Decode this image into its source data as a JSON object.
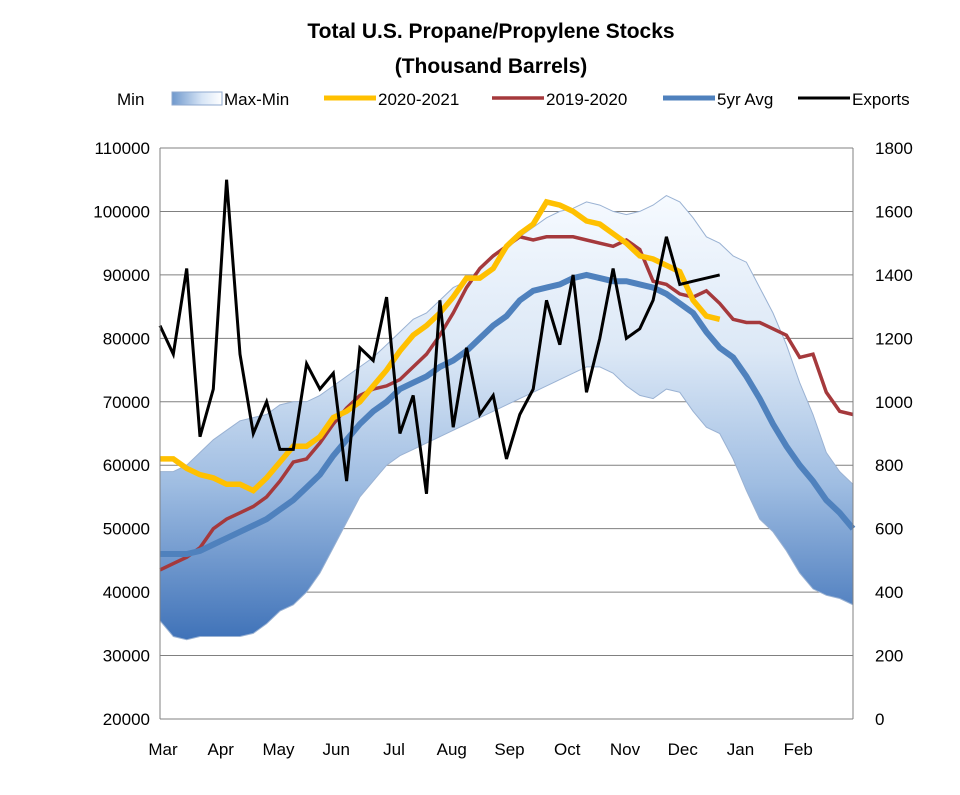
{
  "chart_data": {
    "type": "line",
    "title": "Total U.S. Propane/Propylene Stocks",
    "subtitle": "(Thousand Barrels)",
    "legend_position": "top",
    "legend": [
      "Min",
      "Max-Min",
      "2020-2021",
      "2019-2020",
      "5yr Avg",
      "Exports"
    ],
    "x_tick_labels": [
      "Mar",
      "Apr",
      "May",
      "Jun",
      "Jul",
      "Aug",
      "Sep",
      "Oct",
      "Nov",
      "Dec",
      "Jan",
      "Feb"
    ],
    "x_range_weeks": [
      0,
      52
    ],
    "y_left": {
      "min": 20000,
      "max": 110000,
      "step": 10000,
      "ticks": [
        "20000",
        "30000",
        "40000",
        "50000",
        "60000",
        "70000",
        "80000",
        "90000",
        "100000",
        "110000"
      ]
    },
    "y_right": {
      "min": 0,
      "max": 1800,
      "step": 200,
      "ticks": [
        "0",
        "200",
        "400",
        "600",
        "800",
        "1000",
        "1200",
        "1400",
        "1600",
        "1800"
      ]
    },
    "grid": true,
    "colors": {
      "band_edge": "#9ab2d3",
      "band_light": "#f6faff",
      "band_dark": "#3f72b8",
      "series_2020_2021": "#ffc000",
      "series_2019_2020": "#a5393c",
      "series_5yr_avg": "#4f81bd",
      "series_exports": "#000000",
      "grid": "#808080"
    },
    "series": [
      {
        "name": "Max",
        "axis": "left",
        "role": "band_upper",
        "x": [
          0,
          1,
          2,
          3,
          4,
          5,
          6,
          7,
          8,
          9,
          10,
          11,
          12,
          13,
          14,
          15,
          16,
          17,
          18,
          19,
          20,
          21,
          22,
          23,
          24,
          25,
          26,
          27,
          28,
          29,
          30,
          31,
          32,
          33,
          34,
          35,
          36,
          37,
          38,
          39,
          40,
          41,
          42,
          43,
          44,
          45,
          46,
          47,
          48,
          49,
          50,
          51,
          52
        ],
        "values": [
          59000,
          59000,
          60000,
          62000,
          64000,
          65500,
          67000,
          67500,
          68000,
          69500,
          70000,
          70000,
          71000,
          72500,
          74000,
          75500,
          77000,
          79000,
          81000,
          83000,
          84000,
          86000,
          88000,
          89000,
          91000,
          93000,
          94000,
          96000,
          97500,
          99000,
          100000,
          100500,
          101500,
          101000,
          100000,
          99500,
          100000,
          101000,
          102500,
          101500,
          99000,
          96000,
          95000,
          93000,
          92000,
          88000,
          84000,
          79000,
          73000,
          68000,
          62000,
          59000,
          57000
        ]
      },
      {
        "name": "Min",
        "axis": "left",
        "role": "band_lower",
        "x": [
          0,
          1,
          2,
          3,
          4,
          5,
          6,
          7,
          8,
          9,
          10,
          11,
          12,
          13,
          14,
          15,
          16,
          17,
          18,
          19,
          20,
          21,
          22,
          23,
          24,
          25,
          26,
          27,
          28,
          29,
          30,
          31,
          32,
          33,
          34,
          35,
          36,
          37,
          38,
          39,
          40,
          41,
          42,
          43,
          44,
          45,
          46,
          47,
          48,
          49,
          50,
          51,
          52
        ],
        "values": [
          35500,
          33000,
          32500,
          33000,
          33000,
          33000,
          33000,
          33500,
          35000,
          37000,
          38000,
          40000,
          43000,
          47000,
          51000,
          55000,
          57500,
          60000,
          61500,
          62500,
          63500,
          64500,
          65500,
          66500,
          67500,
          68500,
          69500,
          70500,
          71500,
          72500,
          73500,
          74500,
          75500,
          75500,
          74500,
          72500,
          71000,
          70500,
          72000,
          71500,
          68500,
          66000,
          65000,
          61000,
          56000,
          51500,
          49500,
          46500,
          43000,
          40500,
          39500,
          39000,
          38000
        ]
      },
      {
        "name": "2019-2020",
        "axis": "left",
        "x": [
          0,
          1,
          2,
          3,
          4,
          5,
          6,
          7,
          8,
          9,
          10,
          11,
          12,
          13,
          14,
          15,
          16,
          17,
          18,
          19,
          20,
          21,
          22,
          23,
          24,
          25,
          26,
          27,
          28,
          29,
          30,
          31,
          32,
          33,
          34,
          35,
          36,
          37,
          38,
          39,
          40,
          41,
          42,
          43,
          44,
          45,
          46,
          47,
          48,
          49,
          50,
          51,
          52
        ],
        "values": [
          43500,
          44500,
          45500,
          47000,
          50000,
          51500,
          52500,
          53500,
          55000,
          57500,
          60500,
          61000,
          63500,
          66500,
          69000,
          71000,
          72000,
          72500,
          73500,
          75500,
          77500,
          80500,
          84000,
          88000,
          91000,
          93000,
          94500,
          96000,
          95500,
          96000,
          96000,
          96000,
          95500,
          95000,
          94500,
          95500,
          94000,
          89000,
          88500,
          87000,
          86500,
          87500,
          85500,
          83000,
          82500,
          82500,
          81500,
          80500,
          77000,
          77500,
          71500,
          68500,
          68000
        ]
      },
      {
        "name": "5yr Avg",
        "axis": "left",
        "x": [
          0,
          1,
          2,
          3,
          4,
          5,
          6,
          7,
          8,
          9,
          10,
          11,
          12,
          13,
          14,
          15,
          16,
          17,
          18,
          19,
          20,
          21,
          22,
          23,
          24,
          25,
          26,
          27,
          28,
          29,
          30,
          31,
          32,
          33,
          34,
          35,
          36,
          37,
          38,
          39,
          40,
          41,
          42,
          43,
          44,
          45,
          46,
          47,
          48,
          49,
          50,
          51,
          52
        ],
        "values": [
          46000,
          46000,
          46000,
          46500,
          47500,
          48500,
          49500,
          50500,
          51500,
          53000,
          54500,
          56500,
          58500,
          61500,
          64000,
          66500,
          68500,
          70000,
          72000,
          73000,
          74000,
          75500,
          76500,
          78000,
          80000,
          82000,
          83500,
          86000,
          87500,
          88000,
          88500,
          89500,
          90000,
          89500,
          89000,
          89000,
          88500,
          88000,
          87000,
          85500,
          84000,
          81000,
          78500,
          77000,
          74000,
          70500,
          66500,
          63000,
          60000,
          57500,
          54500,
          52500,
          50000
        ]
      },
      {
        "name": "2020-2021",
        "axis": "left",
        "x": [
          0,
          1,
          2,
          3,
          4,
          5,
          6,
          7,
          8,
          9,
          10,
          11,
          12,
          13,
          14,
          15,
          16,
          17,
          18,
          19,
          20,
          21,
          22,
          23,
          24,
          25,
          26,
          27,
          28,
          29,
          30,
          31,
          32,
          33,
          34,
          35,
          36,
          37,
          38,
          39,
          40,
          41,
          42
        ],
        "values": [
          61000,
          61000,
          59500,
          58500,
          58000,
          57000,
          57000,
          56000,
          58000,
          60500,
          63000,
          63000,
          64500,
          67500,
          68500,
          70000,
          72500,
          75000,
          78000,
          80500,
          82000,
          84000,
          86500,
          89500,
          89500,
          91000,
          94500,
          96500,
          98000,
          101500,
          101000,
          100000,
          98500,
          98000,
          96500,
          95000,
          93000,
          92500,
          91500,
          90500,
          86000,
          83500,
          83000
        ]
      },
      {
        "name": "Exports",
        "axis": "right",
        "x": [
          0,
          1,
          2,
          3,
          4,
          5,
          6,
          7,
          8,
          9,
          10,
          11,
          12,
          13,
          14,
          15,
          16,
          17,
          18,
          19,
          20,
          21,
          22,
          23,
          24,
          25,
          26,
          27,
          28,
          29,
          30,
          31,
          32,
          33,
          34,
          35,
          36,
          37,
          38,
          39,
          40,
          41,
          42
        ],
        "values": [
          1240,
          1150,
          1420,
          890,
          1040,
          1700,
          1150,
          900,
          1000,
          850,
          850,
          1120,
          1040,
          1090,
          750,
          1170,
          1130,
          1330,
          900,
          1020,
          710,
          1320,
          920,
          1170,
          960,
          1020,
          820,
          960,
          1040,
          1320,
          1180,
          1400,
          1030,
          1200,
          1420,
          1200,
          1230,
          1320,
          1520,
          1370,
          1380,
          1390,
          1400
        ]
      }
    ]
  }
}
